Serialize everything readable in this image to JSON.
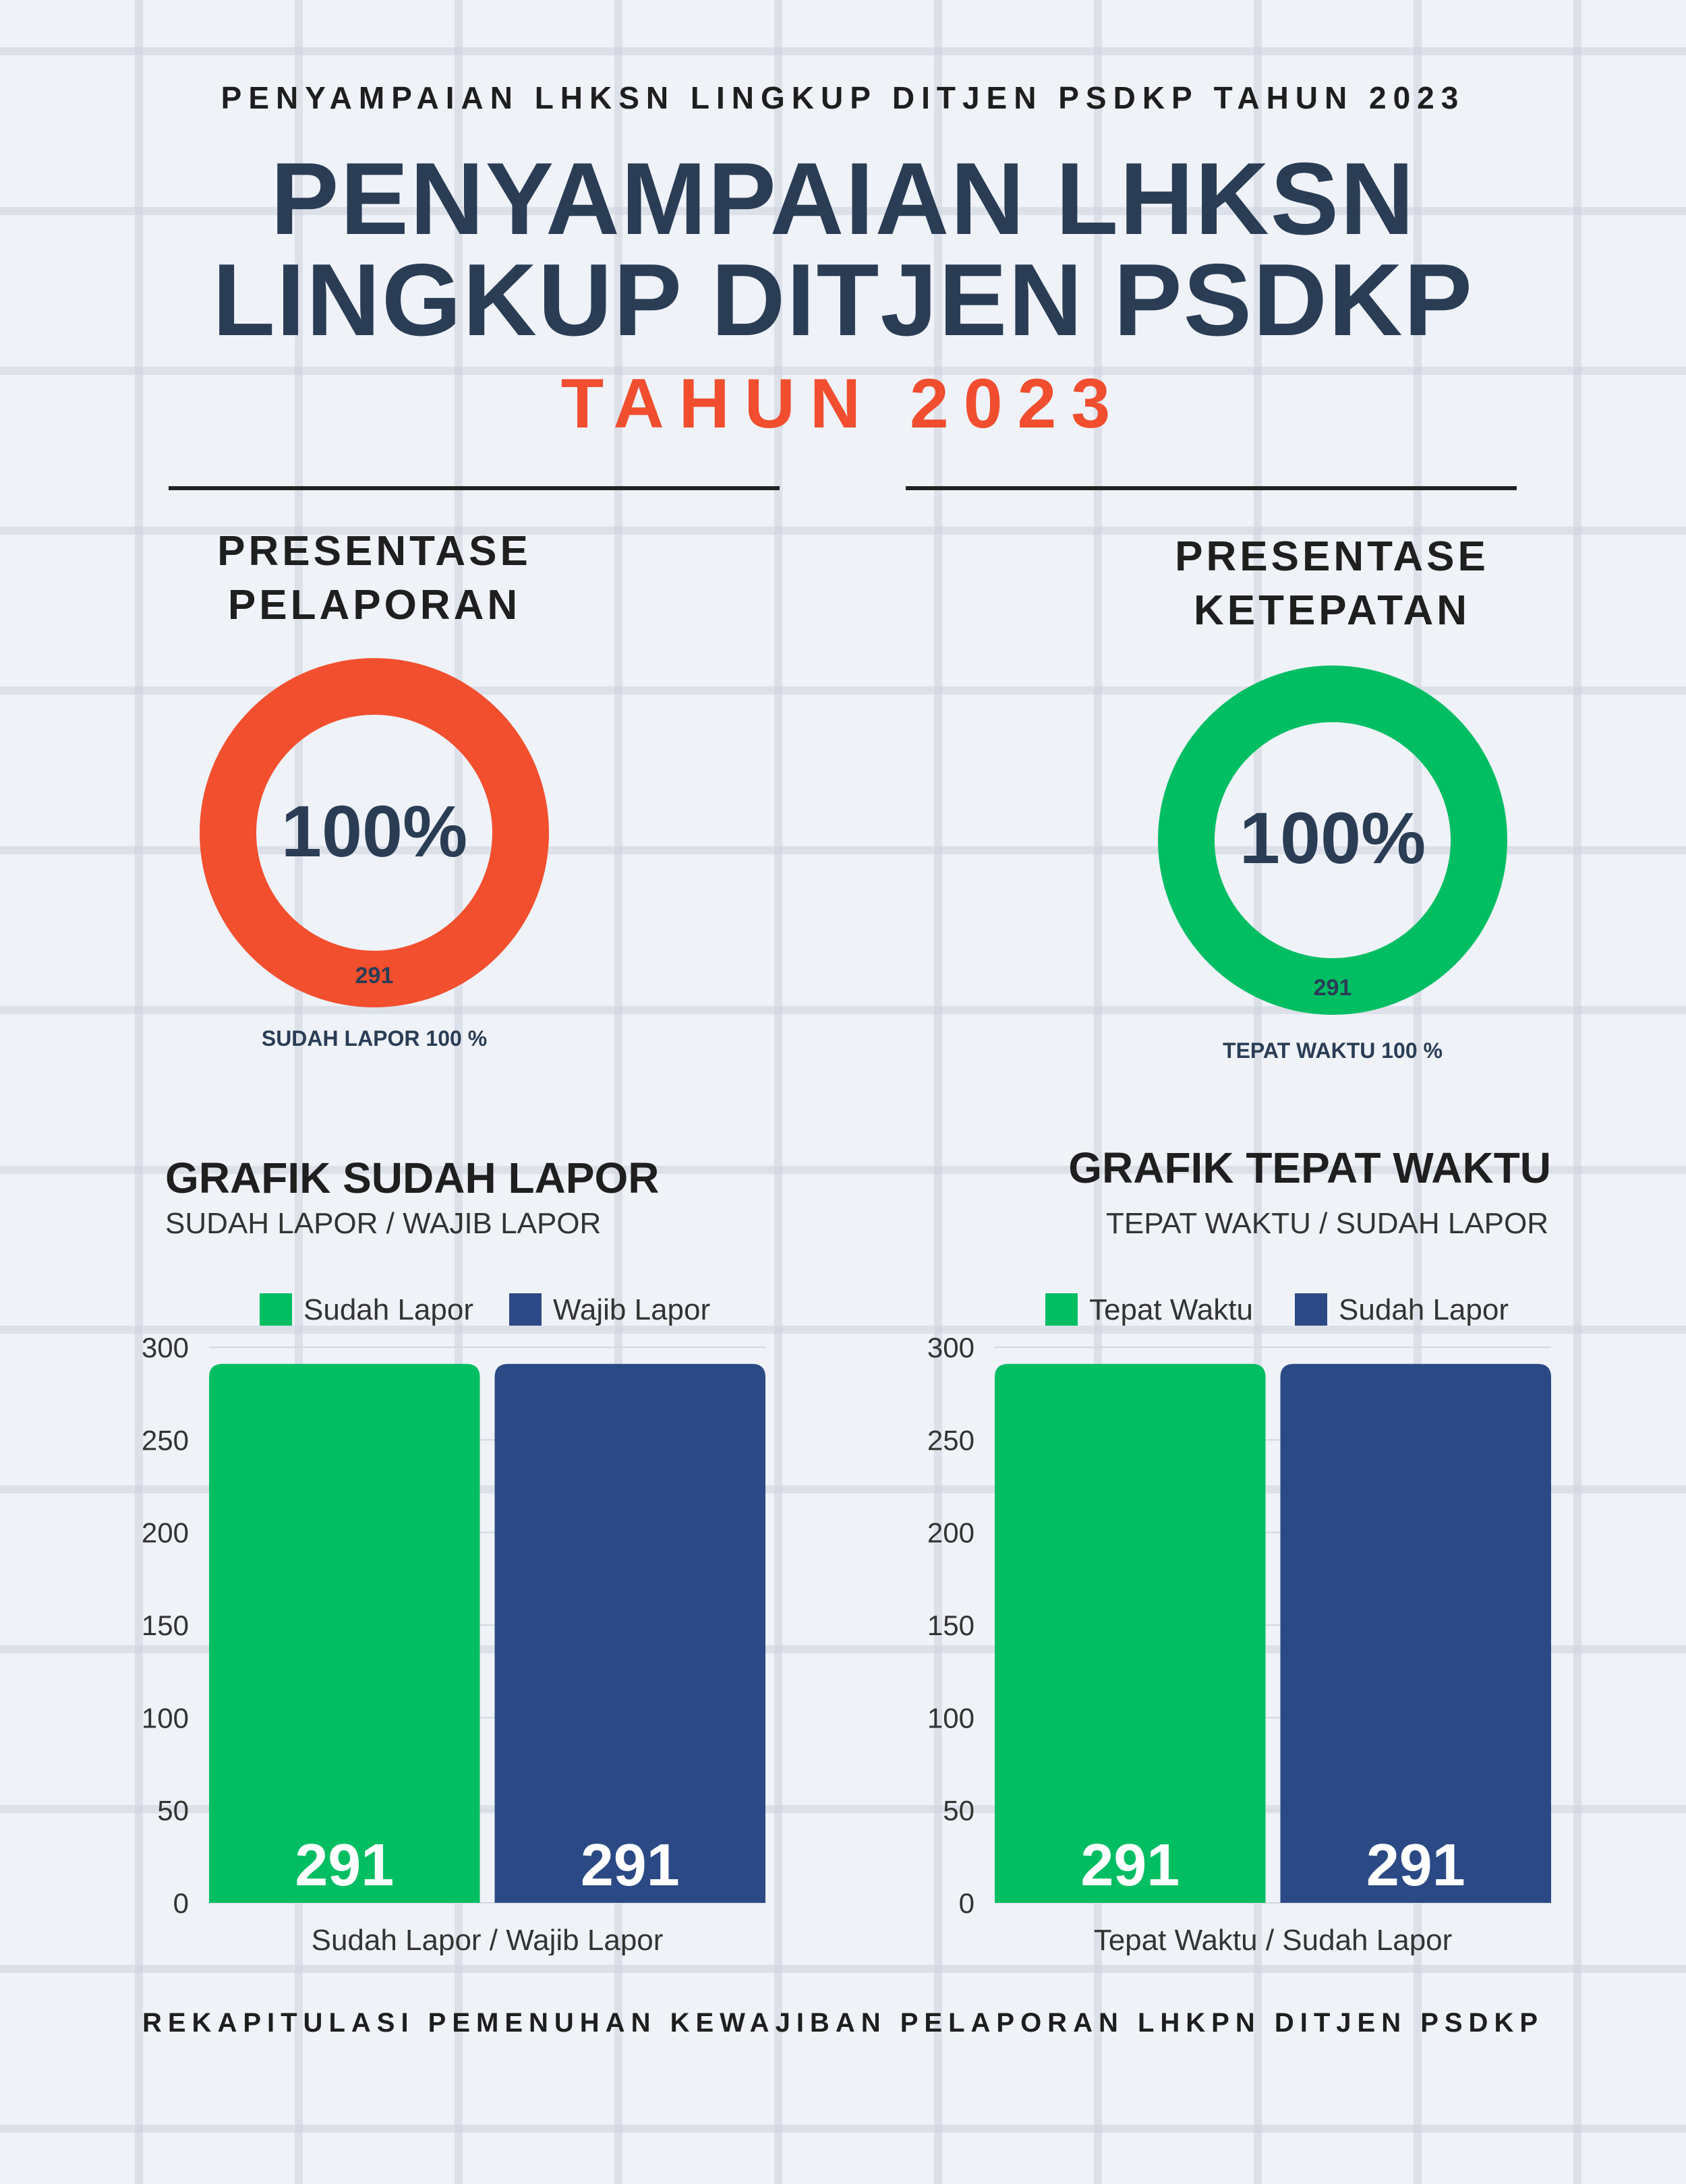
{
  "header": {
    "caption": "PENYAMPAIAN LHKSN LINGKUP DITJEN PSDKP TAHUN 2023",
    "title_line1": "PENYAMPAIAN LHKSN",
    "title_line2": "LINGKUP DITJEN PSDKP",
    "year": "TAHUN 2023"
  },
  "rings": {
    "reporting": {
      "heading_line1": "PRESENTASE",
      "heading_line2": "PELAPORAN",
      "value_label": "100%",
      "count_label": "291",
      "caption": "SUDAH LAPOR 100 %",
      "fraction": 1.0,
      "color": "#f24f2f"
    },
    "timeliness": {
      "heading_line1": "PRESENTASE",
      "heading_line2": "KETEPATAN",
      "value_label": "100%",
      "count_label": "291",
      "caption": "TEPAT WAKTU 100 %",
      "fraction": 1.0,
      "color": "#02be63"
    }
  },
  "charts": {
    "left": {
      "title": "GRAFIK SUDAH LAPOR",
      "subtitle": "SUDAH LAPOR / WAJIB LAPOR"
    },
    "right": {
      "title": "GRAFIK TEPAT WAKTU",
      "subtitle": "TEPAT WAKTU / SUDAH LAPOR"
    }
  },
  "chart_data": [
    {
      "type": "bar",
      "categories": [
        "Sudah Lapor / Wajib Lapor"
      ],
      "series": [
        {
          "name": "Sudah Lapor",
          "values": [
            291
          ],
          "color": "#02be63"
        },
        {
          "name": "Wajib Lapor",
          "values": [
            291
          ],
          "color": "#2b4a85"
        }
      ],
      "data_labels": [
        "291",
        "291"
      ],
      "xlabel": "Sudah Lapor / Wajib Lapor",
      "ylim": [
        0,
        300
      ],
      "yticks": [
        "0",
        "50",
        "100",
        "150",
        "200",
        "250",
        "300"
      ],
      "legend": "top",
      "grid": true
    },
    {
      "type": "bar",
      "categories": [
        "Tepat Waktu / Sudah Lapor"
      ],
      "series": [
        {
          "name": "Tepat Waktu",
          "values": [
            291
          ],
          "color": "#02be63"
        },
        {
          "name": "Sudah Lapor",
          "values": [
            291
          ],
          "color": "#2b4a85"
        }
      ],
      "data_labels": [
        "291",
        "291"
      ],
      "xlabel": "Tepat Waktu / Sudah Lapor",
      "ylim": [
        0,
        300
      ],
      "yticks": [
        "0",
        "50",
        "100",
        "150",
        "200",
        "250",
        "300"
      ],
      "legend": "top",
      "grid": true
    }
  ],
  "footer": "REKAPITULASI PEMENUHAN KEWAJIBAN PELAPORAN LHKPN DITJEN PSDKP"
}
